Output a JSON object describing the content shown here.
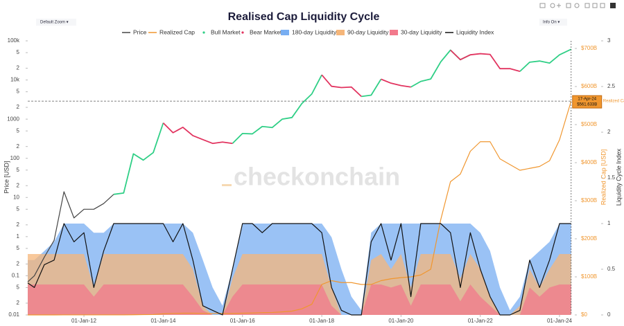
{
  "chart_data": {
    "type": "line",
    "title": "Realised Cap Liquidity Cycle",
    "controls": {
      "zoom": "Default Zoom ▾",
      "info": "Info On ▾"
    },
    "watermark": "checkonchain",
    "y_label": "Price [USD]",
    "y2_label": "Realized Cap [USD]",
    "y3_label": "Liquidity Cycle Index",
    "x": [
      "2010-08-01",
      "2010-10-01",
      "2011-01-01",
      "2011-04-01",
      "2011-07-01",
      "2011-10-01",
      "2012-01-01",
      "2012-04-01",
      "2012-07-01",
      "2012-10-01",
      "2013-01-01",
      "2013-04-01",
      "2013-07-01",
      "2013-10-01",
      "2014-01-01",
      "2014-04-01",
      "2014-07-01",
      "2014-10-01",
      "2015-01-01",
      "2015-04-01",
      "2015-07-01",
      "2015-10-01",
      "2016-01-01",
      "2016-04-01",
      "2016-07-01",
      "2016-10-01",
      "2017-01-01",
      "2017-04-01",
      "2017-07-01",
      "2017-10-01",
      "2018-01-01",
      "2018-04-01",
      "2018-07-01",
      "2018-10-01",
      "2019-01-01",
      "2019-04-01",
      "2019-07-01",
      "2019-10-01",
      "2020-01-01",
      "2020-04-01",
      "2020-07-01",
      "2020-10-01",
      "2021-01-01",
      "2021-04-01",
      "2021-07-01",
      "2021-10-01",
      "2022-01-01",
      "2022-04-01",
      "2022-07-01",
      "2022-10-01",
      "2023-01-01",
      "2023-04-01",
      "2023-07-01",
      "2023-10-01",
      "2024-01-01",
      "2024-04-17"
    ],
    "xlim": [
      "2010-08-01",
      "2024-04-25"
    ],
    "xticks": [
      {
        "value": "2012-01-01",
        "label": "01-Jan-12"
      },
      {
        "value": "2014-01-01",
        "label": "01-Jan-14"
      },
      {
        "value": "2016-01-01",
        "label": "01-Jan-16"
      },
      {
        "value": "2018-01-01",
        "label": "01-Jan-18"
      },
      {
        "value": "2020-01-01",
        "label": "01-Jan-20"
      },
      {
        "value": "2022-01-01",
        "label": "01-Jan-22"
      },
      {
        "value": "2024-01-01",
        "label": "01-Jan-24"
      }
    ],
    "log_y": true,
    "ylim": [
      0.01,
      100000
    ],
    "yticks": [
      0.01,
      {
        "value": 0.02,
        "label": "2"
      },
      {
        "value": 0.05,
        "label": "5"
      },
      0.1,
      {
        "value": 0.2,
        "label": "2"
      },
      {
        "value": 0.5,
        "label": "5"
      },
      1,
      {
        "value": 2,
        "label": "2"
      },
      {
        "value": 5,
        "label": "5"
      },
      10,
      {
        "value": 20,
        "label": "2"
      },
      {
        "value": 50,
        "label": "5"
      },
      100,
      {
        "value": 200,
        "label": "2"
      },
      {
        "value": 500,
        "label": "5"
      },
      1000,
      {
        "value": 2000,
        "label": "2"
      },
      {
        "value": 5000,
        "label": "5"
      },
      {
        "value": 10000,
        "label": "10k"
      },
      {
        "value": 20000,
        "label": "2"
      },
      {
        "value": 50000,
        "label": "5"
      },
      {
        "value": 100000,
        "label": "100k"
      }
    ],
    "y2lim": [
      0,
      720
    ],
    "y2ticks": [
      {
        "value": 0,
        "label": "$0"
      },
      {
        "value": 100,
        "label": "$100B"
      },
      {
        "value": 200,
        "label": "$200B"
      },
      {
        "value": 300,
        "label": "$300B"
      },
      {
        "value": 400,
        "label": "$400B"
      },
      {
        "value": 500,
        "label": "$500B"
      },
      {
        "value": 600,
        "label": "$600B"
      },
      {
        "value": 700,
        "label": "$700B"
      }
    ],
    "y3lim": [
      0,
      3
    ],
    "y3ticks": [
      0,
      0.5,
      1,
      1.5,
      2,
      2.5,
      3
    ],
    "grid": false,
    "series": [
      {
        "name": "Price",
        "type": "line",
        "axis": "y",
        "color": "#444444",
        "values": [
          0.07,
          0.1,
          0.3,
          0.8,
          14,
          3,
          5,
          5,
          7,
          12,
          null,
          null,
          null,
          null,
          null,
          null,
          null,
          null,
          null,
          null,
          null,
          null,
          null,
          null,
          null,
          null,
          null,
          null,
          null,
          null,
          null,
          null,
          null,
          null,
          null,
          null,
          null,
          null,
          null,
          null,
          null,
          null,
          null,
          null,
          null,
          null,
          null,
          null,
          null,
          null,
          null,
          null,
          null,
          null,
          null,
          null
        ]
      },
      {
        "name": "Realized Cap",
        "type": "line",
        "axis": "y2",
        "color": "#f0962e",
        "values": [
          0,
          0,
          0,
          0.05,
          0.1,
          0.1,
          0.1,
          0.1,
          0.1,
          0.1,
          0.1,
          0.5,
          0.8,
          1,
          3,
          4,
          4.5,
          4.5,
          4.2,
          4,
          3.9,
          3.8,
          4.5,
          5,
          6,
          6.5,
          8,
          10,
          16,
          28,
          80,
          90,
          85,
          85,
          80,
          80,
          90,
          95,
          98,
          100,
          105,
          120,
          250,
          350,
          370,
          430,
          455,
          455,
          410,
          395,
          380,
          385,
          390,
          405,
          460,
          561.633
        ]
      },
      {
        "name": "Bull Market",
        "type": "markers",
        "axis": "y",
        "color": "#2fcf86",
        "values": [
          null,
          null,
          null,
          null,
          null,
          null,
          null,
          null,
          null,
          12,
          13,
          130,
          90,
          140,
          800,
          null,
          null,
          null,
          null,
          null,
          null,
          240,
          430,
          420,
          650,
          610,
          1000,
          1100,
          2500,
          4400,
          13500,
          null,
          null,
          null,
          3800,
          4100,
          10500,
          null,
          null,
          6600,
          9200,
          10600,
          29000,
          58000,
          33000,
          44000,
          null,
          null,
          null,
          null,
          16600,
          28500,
          30500,
          27000,
          44000,
          61000
        ]
      },
      {
        "name": "Bear Market",
        "type": "markers",
        "axis": "y",
        "color": "#e2335f",
        "values": [
          null,
          null,
          null,
          null,
          null,
          null,
          null,
          null,
          null,
          null,
          null,
          null,
          null,
          null,
          800,
          450,
          620,
          380,
          300,
          240,
          260,
          240,
          null,
          null,
          null,
          null,
          null,
          null,
          null,
          null,
          13500,
          6900,
          6400,
          6600,
          3800,
          null,
          10500,
          8300,
          7200,
          6600,
          null,
          null,
          null,
          58000,
          33000,
          44000,
          47000,
          45000,
          19500,
          19500,
          16600,
          null,
          null,
          null,
          null,
          null
        ]
      },
      {
        "name": "180-day Liquidity",
        "type": "area",
        "axis": "y3",
        "color": "#78aef2",
        "values": [
          0.6,
          0.6,
          0.7,
          0.8,
          1,
          1,
          1,
          0.9,
          0.9,
          1,
          1,
          1,
          1,
          1,
          1,
          1,
          1,
          0.9,
          0.6,
          0.3,
          0.1,
          0.5,
          1,
          1,
          1,
          1,
          1,
          1,
          1,
          1,
          1,
          0.85,
          0.5,
          0.2,
          0.05,
          0.9,
          1,
          1,
          1,
          1,
          1,
          1,
          1,
          1,
          1,
          1,
          0.9,
          0.7,
          0.3,
          0.05,
          0.2,
          0.6,
          0.7,
          0.8,
          1,
          1
        ]
      },
      {
        "name": "90-day Liquidity",
        "type": "area",
        "axis": "y3",
        "color": "#f5b67a",
        "values": [
          0.667,
          0.667,
          0.667,
          0.667,
          0.667,
          0.667,
          0.667,
          0.3,
          0.667,
          0.667,
          0.667,
          0.667,
          0.667,
          0.667,
          0.667,
          0.667,
          0.667,
          0.5,
          0.1,
          0,
          0,
          0.4,
          0.667,
          0.667,
          0.667,
          0.667,
          0.667,
          0.667,
          0.667,
          0.667,
          0.667,
          0.3,
          0,
          0,
          0,
          0.6,
          0.667,
          0.5,
          0.667,
          0.3,
          0.667,
          0.667,
          0.667,
          0.667,
          0.4,
          0.667,
          0.5,
          0.2,
          0,
          0,
          0.1,
          0.5,
          0.3,
          0.5,
          0.667,
          0.667
        ]
      },
      {
        "name": "30-day Liquidity",
        "type": "area",
        "axis": "y3",
        "color": "#f27a8c",
        "values": [
          0.333,
          0.333,
          0.333,
          0.333,
          0.333,
          0.333,
          0.333,
          0.2,
          0.333,
          0.333,
          0.333,
          0.333,
          0.333,
          0.333,
          0.333,
          0.333,
          0.333,
          0.2,
          0.05,
          0,
          0,
          0.2,
          0.333,
          0.333,
          0.333,
          0.333,
          0.333,
          0.333,
          0.333,
          0.333,
          0.333,
          0.1,
          0,
          0,
          0,
          0.333,
          0.333,
          0.3,
          0.333,
          0.1,
          0.333,
          0.333,
          0.333,
          0.333,
          0.15,
          0.333,
          0.2,
          0.1,
          0,
          0,
          0,
          0.3,
          0.2,
          0.3,
          0.333,
          0.333
        ]
      },
      {
        "name": "Liquidity Index",
        "type": "line",
        "axis": "y3",
        "color": "#111111",
        "values": [
          0.35,
          0.3,
          0.55,
          0.6,
          1,
          0.8,
          0.9,
          0.3,
          0.7,
          1,
          1,
          1,
          1,
          1,
          1,
          0.8,
          1,
          0.6,
          0.1,
          0.05,
          0,
          0.5,
          1,
          1,
          0.9,
          1,
          1,
          1,
          1,
          1,
          0.9,
          0.3,
          0.05,
          0,
          0,
          0.8,
          1,
          0.6,
          1,
          0.2,
          1,
          1,
          1,
          0.9,
          0.3,
          0.9,
          0.5,
          0.2,
          0,
          0,
          0.05,
          0.6,
          0.3,
          0.6,
          1,
          1
        ]
      }
    ],
    "hover": {
      "x": "2024-04-17",
      "label": "17-Apr-24",
      "value": 561.633,
      "value_label": "$561.633B",
      "name": "Realized Cap"
    }
  }
}
